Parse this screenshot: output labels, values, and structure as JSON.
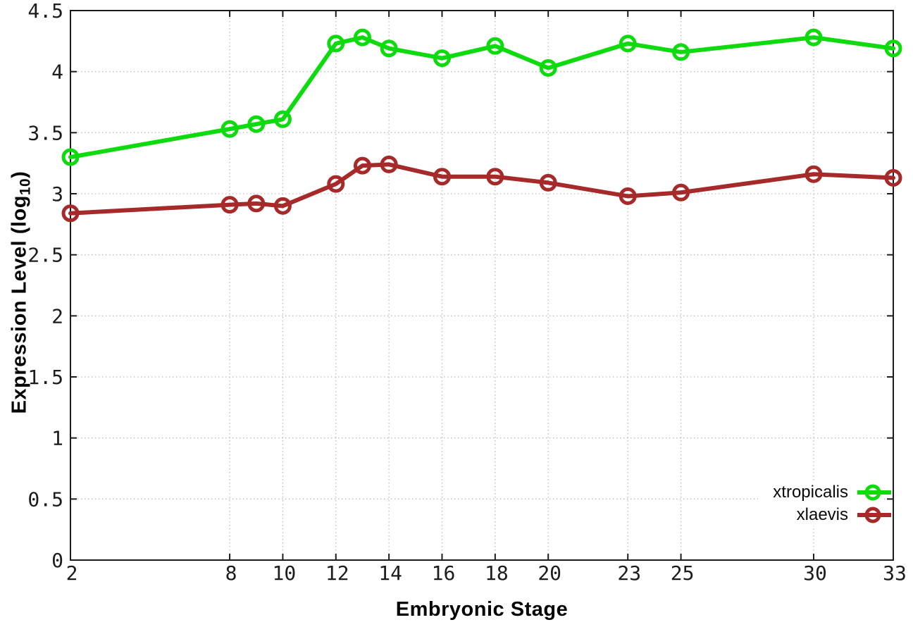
{
  "figure": {
    "background": "#ffffff",
    "border_color": "#1c1c1c",
    "grid_color": "#bcbcbc",
    "text_color": "#1c1c1c"
  },
  "chart_data": {
    "type": "line",
    "title": "",
    "xlabel": "Embryonic Stage",
    "ylabel": {
      "prefix": "Expression Level (log",
      "sub": "10",
      "suffix": ")"
    },
    "xlim": [
      2,
      33
    ],
    "ylim": [
      0,
      4.5
    ],
    "grid": true,
    "legend_position": "bottom-right",
    "marker": "open-circle",
    "x": [
      2,
      8,
      9,
      10,
      12,
      13,
      14,
      16,
      18,
      20,
      23,
      25,
      30,
      33
    ],
    "x_tick_values": [
      2,
      8,
      10,
      12,
      14,
      16,
      18,
      20,
      23,
      25,
      30,
      33
    ],
    "x_tick_labels": [
      "2",
      "8",
      "10",
      "12",
      "14",
      "16",
      "18",
      "20",
      "23",
      "25",
      "30",
      "33"
    ],
    "y_tick_values": [
      0,
      0.5,
      1,
      1.5,
      2,
      2.5,
      3,
      3.5,
      4,
      4.5
    ],
    "y_tick_labels": [
      "0",
      "0.5",
      "1",
      "1.5",
      "2",
      "2.5",
      "3",
      "3.5",
      "4",
      "4.5"
    ],
    "series": [
      {
        "name": "xtropicalis",
        "color": "#0ddb0d",
        "values": [
          3.3,
          3.53,
          3.57,
          3.61,
          4.23,
          4.28,
          4.19,
          4.11,
          4.21,
          4.03,
          4.23,
          4.16,
          4.28,
          4.19
        ]
      },
      {
        "name": "xlaevis",
        "color": "#a62a2a",
        "values": [
          2.84,
          2.91,
          2.92,
          2.9,
          3.08,
          3.23,
          3.24,
          3.14,
          3.14,
          3.09,
          2.98,
          3.01,
          3.16,
          3.13
        ]
      }
    ]
  }
}
